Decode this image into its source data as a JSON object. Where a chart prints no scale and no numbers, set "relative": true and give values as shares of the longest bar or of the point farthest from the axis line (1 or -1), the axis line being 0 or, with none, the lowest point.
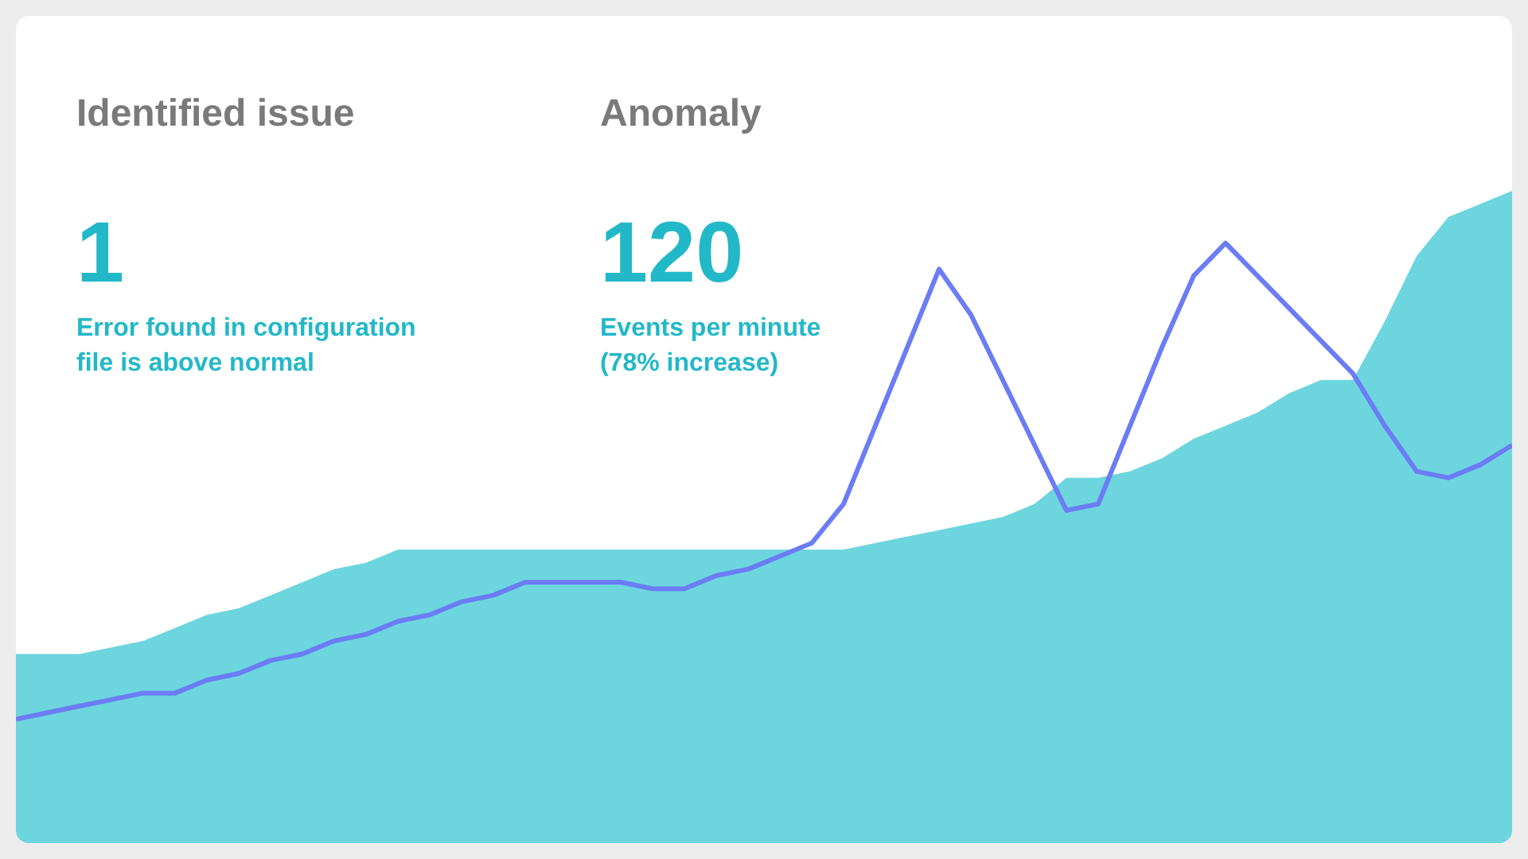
{
  "chart_data": {
    "type": "area",
    "relative": true,
    "legend": false,
    "categories": [
      null,
      null,
      null,
      null,
      null,
      null,
      null,
      null,
      null,
      null,
      null,
      null,
      null,
      null,
      null,
      null,
      null,
      null,
      null,
      null,
      null,
      null,
      null,
      null,
      null,
      null,
      null,
      null,
      null,
      null,
      null,
      null,
      null,
      null,
      null,
      null,
      null,
      null,
      null,
      null,
      null,
      null,
      null,
      null,
      null,
      null,
      null,
      null
    ],
    "series": [
      {
        "color": "#6dd5de",
        "values": [
          0.29,
          0.29,
          0.29,
          0.3,
          0.31,
          0.33,
          0.35,
          0.36,
          0.38,
          0.4,
          0.42,
          0.43,
          0.45,
          0.45,
          0.45,
          0.45,
          0.45,
          0.45,
          0.45,
          0.45,
          0.45,
          0.45,
          0.45,
          0.45,
          0.45,
          0.45,
          0.45,
          0.46,
          0.47,
          0.48,
          0.49,
          0.5,
          0.52,
          0.56,
          0.56,
          0.57,
          0.59,
          0.62,
          0.64,
          0.66,
          0.69,
          0.71,
          0.71,
          0.8,
          0.9,
          0.96,
          0.98,
          1
        ]
      },
      {
        "type": "line",
        "color": "#6b7cf5",
        "values": [
          0.19,
          0.2,
          0.21,
          0.22,
          0.23,
          0.23,
          0.25,
          0.26,
          0.28,
          0.29,
          0.31,
          0.32,
          0.34,
          0.35,
          0.37,
          0.38,
          0.4,
          0.4,
          0.4,
          0.4,
          0.39,
          0.39,
          0.41,
          0.42,
          0.44,
          0.46,
          0.52,
          0.64,
          0.76,
          0.88,
          0.81,
          0.71,
          0.61,
          0.51,
          0.52,
          0.64,
          0.76,
          0.87,
          0.92,
          0.87,
          0.82,
          0.77,
          0.72,
          0.64,
          0.57,
          0.56,
          0.58,
          0.61
        ]
      }
    ],
    "annotations": [
      "Identified issue",
      "1",
      "Error found in configuration file is above normal",
      "Anomaly",
      "120",
      "Events per minute (78% increase)"
    ]
  }
}
